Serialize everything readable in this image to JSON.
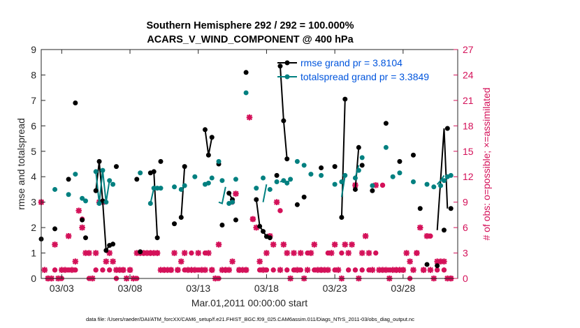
{
  "chart_data": {
    "type": "line",
    "title": "Southern Hemisphere 292 / 292 = 100.000%",
    "subtitle": "ACARS_V_WIND_COMPONENT @ 400 hPa",
    "xlabel": "Mar.01,2011 00:00:00 start",
    "ylabel": "rmse and totalspread",
    "ylabel_right": "# of obs: o=possible; ×=assimilated",
    "xlim": [
      1.5,
      32
    ],
    "ylim": [
      0,
      9
    ],
    "ylim_right": [
      0,
      27
    ],
    "x_ticks": [
      3,
      8,
      13,
      18,
      23,
      28
    ],
    "x_tick_labels": [
      "03/03",
      "03/08",
      "03/13",
      "03/18",
      "03/23",
      "03/28"
    ],
    "y_ticks": [
      0,
      1,
      2,
      3,
      4,
      5,
      6,
      7,
      8,
      9
    ],
    "y_tick_labels": [
      "0",
      "1",
      "2",
      "3",
      "4",
      "5",
      "6",
      "7",
      "8",
      "9"
    ],
    "y_right_ticks": [
      0,
      3,
      6,
      9,
      12,
      15,
      18,
      21,
      24,
      27
    ],
    "y_right_tick_labels": [
      "0",
      "3",
      "6",
      "9",
      "12",
      "15",
      "18",
      "21",
      "24",
      "27"
    ],
    "colors": {
      "rmse": "#000000",
      "totalspread": "#008080",
      "obs": "#D41159",
      "legend_text": "#0055DD",
      "right_axis": "#D41159"
    },
    "series": [
      {
        "name": "rmse grand pr = 3.8104",
        "color": "#000000",
        "x": [
          1.5,
          2.5,
          3.5,
          4.0,
          4.5,
          4.75,
          5.5,
          5.75,
          6.0,
          6.25,
          6.5,
          6.75,
          7.0,
          8.5,
          8.75,
          9.5,
          9.75,
          10.0,
          10.25,
          11.25,
          11.75,
          12.0,
          13.5,
          13.75,
          14.0,
          14.5,
          14.75,
          15.25,
          15.5,
          15.75,
          16.5,
          17.25,
          17.5,
          17.75,
          18.0,
          18.25,
          18.75,
          19.0,
          19.25,
          19.5,
          20.25,
          20.75,
          22.0,
          23.0,
          23.5,
          23.75,
          24.5,
          24.75,
          25.0,
          25.75,
          26.75,
          27.75,
          28.75,
          29.25,
          29.75,
          30.5,
          31.0,
          31.25,
          31.5
        ],
        "y": [
          1.55,
          1.95,
          3.9,
          6.9,
          2.3,
          1.6,
          3.45,
          4.6,
          3.05,
          1.1,
          1.3,
          1.35,
          4.4,
          3.9,
          1.05,
          4.15,
          4.2,
          1.6,
          4.6,
          2.15,
          2.4,
          4.4,
          5.85,
          4.85,
          5.55,
          4.5,
          2.1,
          3.35,
          3.1,
          2.3,
          8.1,
          3.1,
          2.05,
          1.85,
          1.65,
          1.6,
          4.05,
          8.35,
          6.2,
          4.7,
          2.9,
          3.2,
          4.35,
          4.4,
          2.4,
          7.05,
          3.5,
          5.15,
          4.45,
          3.45,
          6.1,
          4.6,
          4.85,
          2.75,
          0.55,
          0.5,
          1.9,
          5.9,
          2.75
        ],
        "segments": [
          [
            [
              5.5,
              3.45
            ],
            [
              5.75,
              4.6
            ],
            [
              6.0,
              3.05
            ],
            [
              6.25,
              1.1
            ],
            [
              6.5,
              1.3
            ]
          ],
          [
            [
              9.5,
              4.15
            ],
            [
              9.75,
              4.2
            ],
            [
              10.0,
              1.6
            ]
          ],
          [
            [
              11.75,
              2.4
            ],
            [
              12.0,
              4.4
            ]
          ],
          [
            [
              13.5,
              5.85
            ],
            [
              13.75,
              4.85
            ],
            [
              14.0,
              5.55
            ]
          ],
          [
            [
              15.25,
              3.35
            ],
            [
              15.5,
              3.1
            ]
          ],
          [
            [
              17.25,
              3.1
            ],
            [
              17.5,
              2.05
            ],
            [
              17.75,
              1.85
            ],
            [
              18.0,
              1.65
            ]
          ],
          [
            [
              19.0,
              8.35
            ],
            [
              19.25,
              6.2
            ],
            [
              19.5,
              4.7
            ]
          ],
          [
            [
              23.5,
              2.4
            ],
            [
              23.75,
              7.05
            ]
          ],
          [
            [
              24.5,
              3.5
            ],
            [
              24.75,
              5.15
            ]
          ],
          [
            [
              30.5,
              1.9
            ],
            [
              31.0,
              5.9
            ],
            [
              31.25,
              2.75
            ]
          ]
        ]
      },
      {
        "name": "totalspread grand pr = 3.3849",
        "color": "#008080",
        "x": [
          2.5,
          3.5,
          4.0,
          4.5,
          4.75,
          5.5,
          5.75,
          6.0,
          6.25,
          6.5,
          6.75,
          8.75,
          9.5,
          9.75,
          10.0,
          10.25,
          11.25,
          11.75,
          12.0,
          12.75,
          13.5,
          13.75,
          14.0,
          14.5,
          14.75,
          15.25,
          15.5,
          15.75,
          16.5,
          17.25,
          17.75,
          18.25,
          18.75,
          19.25,
          19.5,
          19.75,
          20.25,
          20.75,
          21.25,
          22.0,
          23.0,
          23.5,
          23.75,
          24.5,
          24.75,
          25.0,
          25.75,
          26.75,
          27.25,
          27.75,
          28.75,
          29.75,
          30.25,
          30.75,
          31.0,
          31.25,
          31.5
        ],
        "y": [
          3.5,
          3.3,
          4.1,
          3.15,
          3.05,
          4.2,
          2.95,
          4.25,
          3.0,
          3.85,
          3.7,
          4.15,
          2.95,
          3.55,
          3.55,
          3.55,
          3.6,
          3.5,
          3.65,
          4.0,
          3.7,
          3.75,
          3.95,
          4.6,
          3.85,
          2.95,
          3.0,
          3.9,
          7.3,
          3.55,
          3.95,
          3.5,
          3.8,
          3.85,
          3.75,
          3.9,
          4.6,
          4.45,
          4.1,
          4.05,
          3.7,
          3.8,
          4.05,
          3.95,
          4.25,
          4.75,
          3.65,
          5.15,
          4.0,
          4.15,
          3.8,
          3.7,
          3.6,
          3.65,
          3.85,
          4.0,
          4.05
        ],
        "segments": [
          [
            [
              5.5,
              4.2
            ],
            [
              5.75,
              2.95
            ],
            [
              6.0,
              4.25
            ],
            [
              6.25,
              3.0
            ],
            [
              6.5,
              3.85
            ]
          ],
          [
            [
              9.5,
              2.95
            ],
            [
              9.75,
              3.55
            ]
          ],
          [
            [
              14.5,
              3.0
            ],
            [
              14.75,
              2.95
            ],
            [
              15.0,
              3.6
            ]
          ],
          [
            [
              17.75,
              3.0
            ],
            [
              18.0,
              3.7
            ]
          ],
          [
            [
              19.0,
              3.8
            ],
            [
              19.25,
              3.85
            ],
            [
              19.5,
              3.75
            ],
            [
              19.75,
              3.9
            ]
          ],
          [
            [
              23.5,
              3.2
            ],
            [
              23.75,
              4.05
            ]
          ],
          [
            [
              24.5,
              3.95
            ],
            [
              24.75,
              4.45
            ]
          ],
          [
            [
              30.5,
              3.7
            ],
            [
              30.75,
              3.85
            ],
            [
              31.0,
              4.05
            ]
          ]
        ]
      }
    ],
    "obs_possible": {
      "name": "# of obs possible",
      "marker": "o",
      "x": [
        1.5,
        2.0,
        2.5,
        3.0,
        3.5,
        4.0,
        4.5,
        5.0,
        5.5,
        6.0,
        6.5,
        7.0,
        7.5,
        8.0,
        8.5,
        9.0,
        9.5,
        10.0,
        10.5,
        11.0,
        11.5,
        12.0,
        12.5,
        13.0,
        13.5,
        14.0,
        14.5,
        15.0,
        15.5,
        16.0,
        16.5,
        17.0,
        17.5,
        18.0,
        18.5,
        19.0,
        19.5,
        20.0,
        20.5,
        21.0,
        21.5,
        22.0,
        22.5,
        23.0,
        23.5,
        24.0,
        24.5,
        25.0,
        25.5,
        26.0,
        26.5,
        27.0,
        27.5,
        28.0,
        28.5,
        29.0,
        29.5,
        30.0,
        30.5,
        31.0,
        31.5
      ],
      "y": [
        9,
        0,
        1,
        0,
        1,
        1,
        7,
        0,
        1,
        1,
        1,
        0,
        1,
        1,
        0,
        3,
        3,
        3,
        1,
        1,
        1,
        1,
        3,
        1,
        3,
        1,
        0,
        1,
        9,
        1,
        1,
        7,
        1,
        1,
        1,
        8,
        1,
        1,
        1,
        3,
        1,
        1,
        3,
        1,
        3,
        1,
        1,
        1,
        1,
        3,
        11,
        1,
        1,
        1,
        0,
        3,
        1,
        5,
        1,
        1,
        0
      ]
    },
    "obs_assimilated": {
      "name": "# of obs assimilated",
      "marker": "x",
      "x": [
        1.5,
        1.75,
        2.0,
        2.25,
        2.5,
        2.75,
        3.0,
        3.25,
        3.5,
        3.75,
        4.0,
        4.25,
        4.5,
        4.75,
        5.0,
        5.25,
        5.5,
        5.75,
        6.0,
        6.25,
        6.5,
        6.75,
        7.0,
        7.25,
        7.5,
        7.75,
        8.0,
        8.25,
        8.5,
        8.75,
        9.0,
        9.25,
        9.5,
        9.75,
        10.0,
        10.25,
        10.5,
        10.75,
        11.0,
        11.25,
        11.5,
        11.75,
        12.0,
        12.25,
        12.5,
        12.75,
        13.0,
        13.25,
        13.5,
        13.75,
        14.0,
        14.25,
        14.5,
        14.75,
        15.0,
        15.25,
        15.5,
        15.75,
        16.0,
        16.25,
        16.5,
        16.75,
        17.0,
        17.25,
        17.5,
        17.75,
        18.0,
        18.25,
        18.5,
        18.75,
        19.0,
        19.25,
        19.5,
        19.75,
        20.0,
        20.25,
        20.5,
        20.75,
        21.0,
        21.25,
        21.5,
        21.75,
        22.0,
        22.25,
        22.5,
        22.75,
        23.0,
        23.25,
        23.5,
        23.75,
        24.0,
        24.25,
        24.5,
        24.75,
        25.0,
        25.25,
        25.5,
        25.75,
        26.0,
        26.25,
        26.5,
        26.75,
        27.0,
        27.25,
        27.5,
        27.75,
        28.0,
        28.25,
        28.5,
        28.75,
        29.0,
        29.25,
        29.5,
        29.75,
        30.0,
        30.25,
        30.5,
        30.75,
        31.0,
        31.25,
        31.5
      ],
      "y": [
        9,
        1,
        0,
        0,
        4,
        0,
        1,
        1,
        5,
        1,
        2,
        8,
        6,
        3,
        3,
        0,
        3,
        9,
        9,
        2,
        3,
        2,
        1,
        1,
        1,
        0,
        1,
        0,
        3,
        3,
        3,
        3,
        3,
        3,
        3,
        1,
        1,
        1,
        1,
        3,
        1,
        2,
        3,
        1,
        1,
        1,
        3,
        1,
        1,
        3,
        1,
        0,
        4,
        1,
        1,
        1,
        2,
        10,
        1,
        1,
        1,
        19,
        7,
        6,
        2,
        1,
        3,
        5,
        4,
        9,
        1,
        4,
        3,
        0,
        3,
        1,
        3,
        0,
        1,
        3,
        4,
        1,
        1,
        1,
        1,
        3,
        4,
        1,
        0,
        4,
        3,
        4,
        11,
        0,
        3,
        5,
        3,
        1,
        11,
        1,
        1,
        1,
        0,
        1,
        1,
        1,
        1,
        3,
        2,
        1,
        3,
        6,
        1,
        5,
        1,
        0,
        2,
        2,
        2,
        0,
        0
      ]
    },
    "legend": {
      "placement": "top-right",
      "entries": [
        "rmse grand pr = 3.8104",
        "totalspread grand pr = 3.3849"
      ]
    },
    "grid": false,
    "footer": "data file: /Users/raeder/DAI/ATM_forcXX/CAM6_setup/f.e21.FHIST_BGC.f09_025.CAM6assim.011/Diags_NTrS_2011-03/obs_diag_output.nc"
  }
}
